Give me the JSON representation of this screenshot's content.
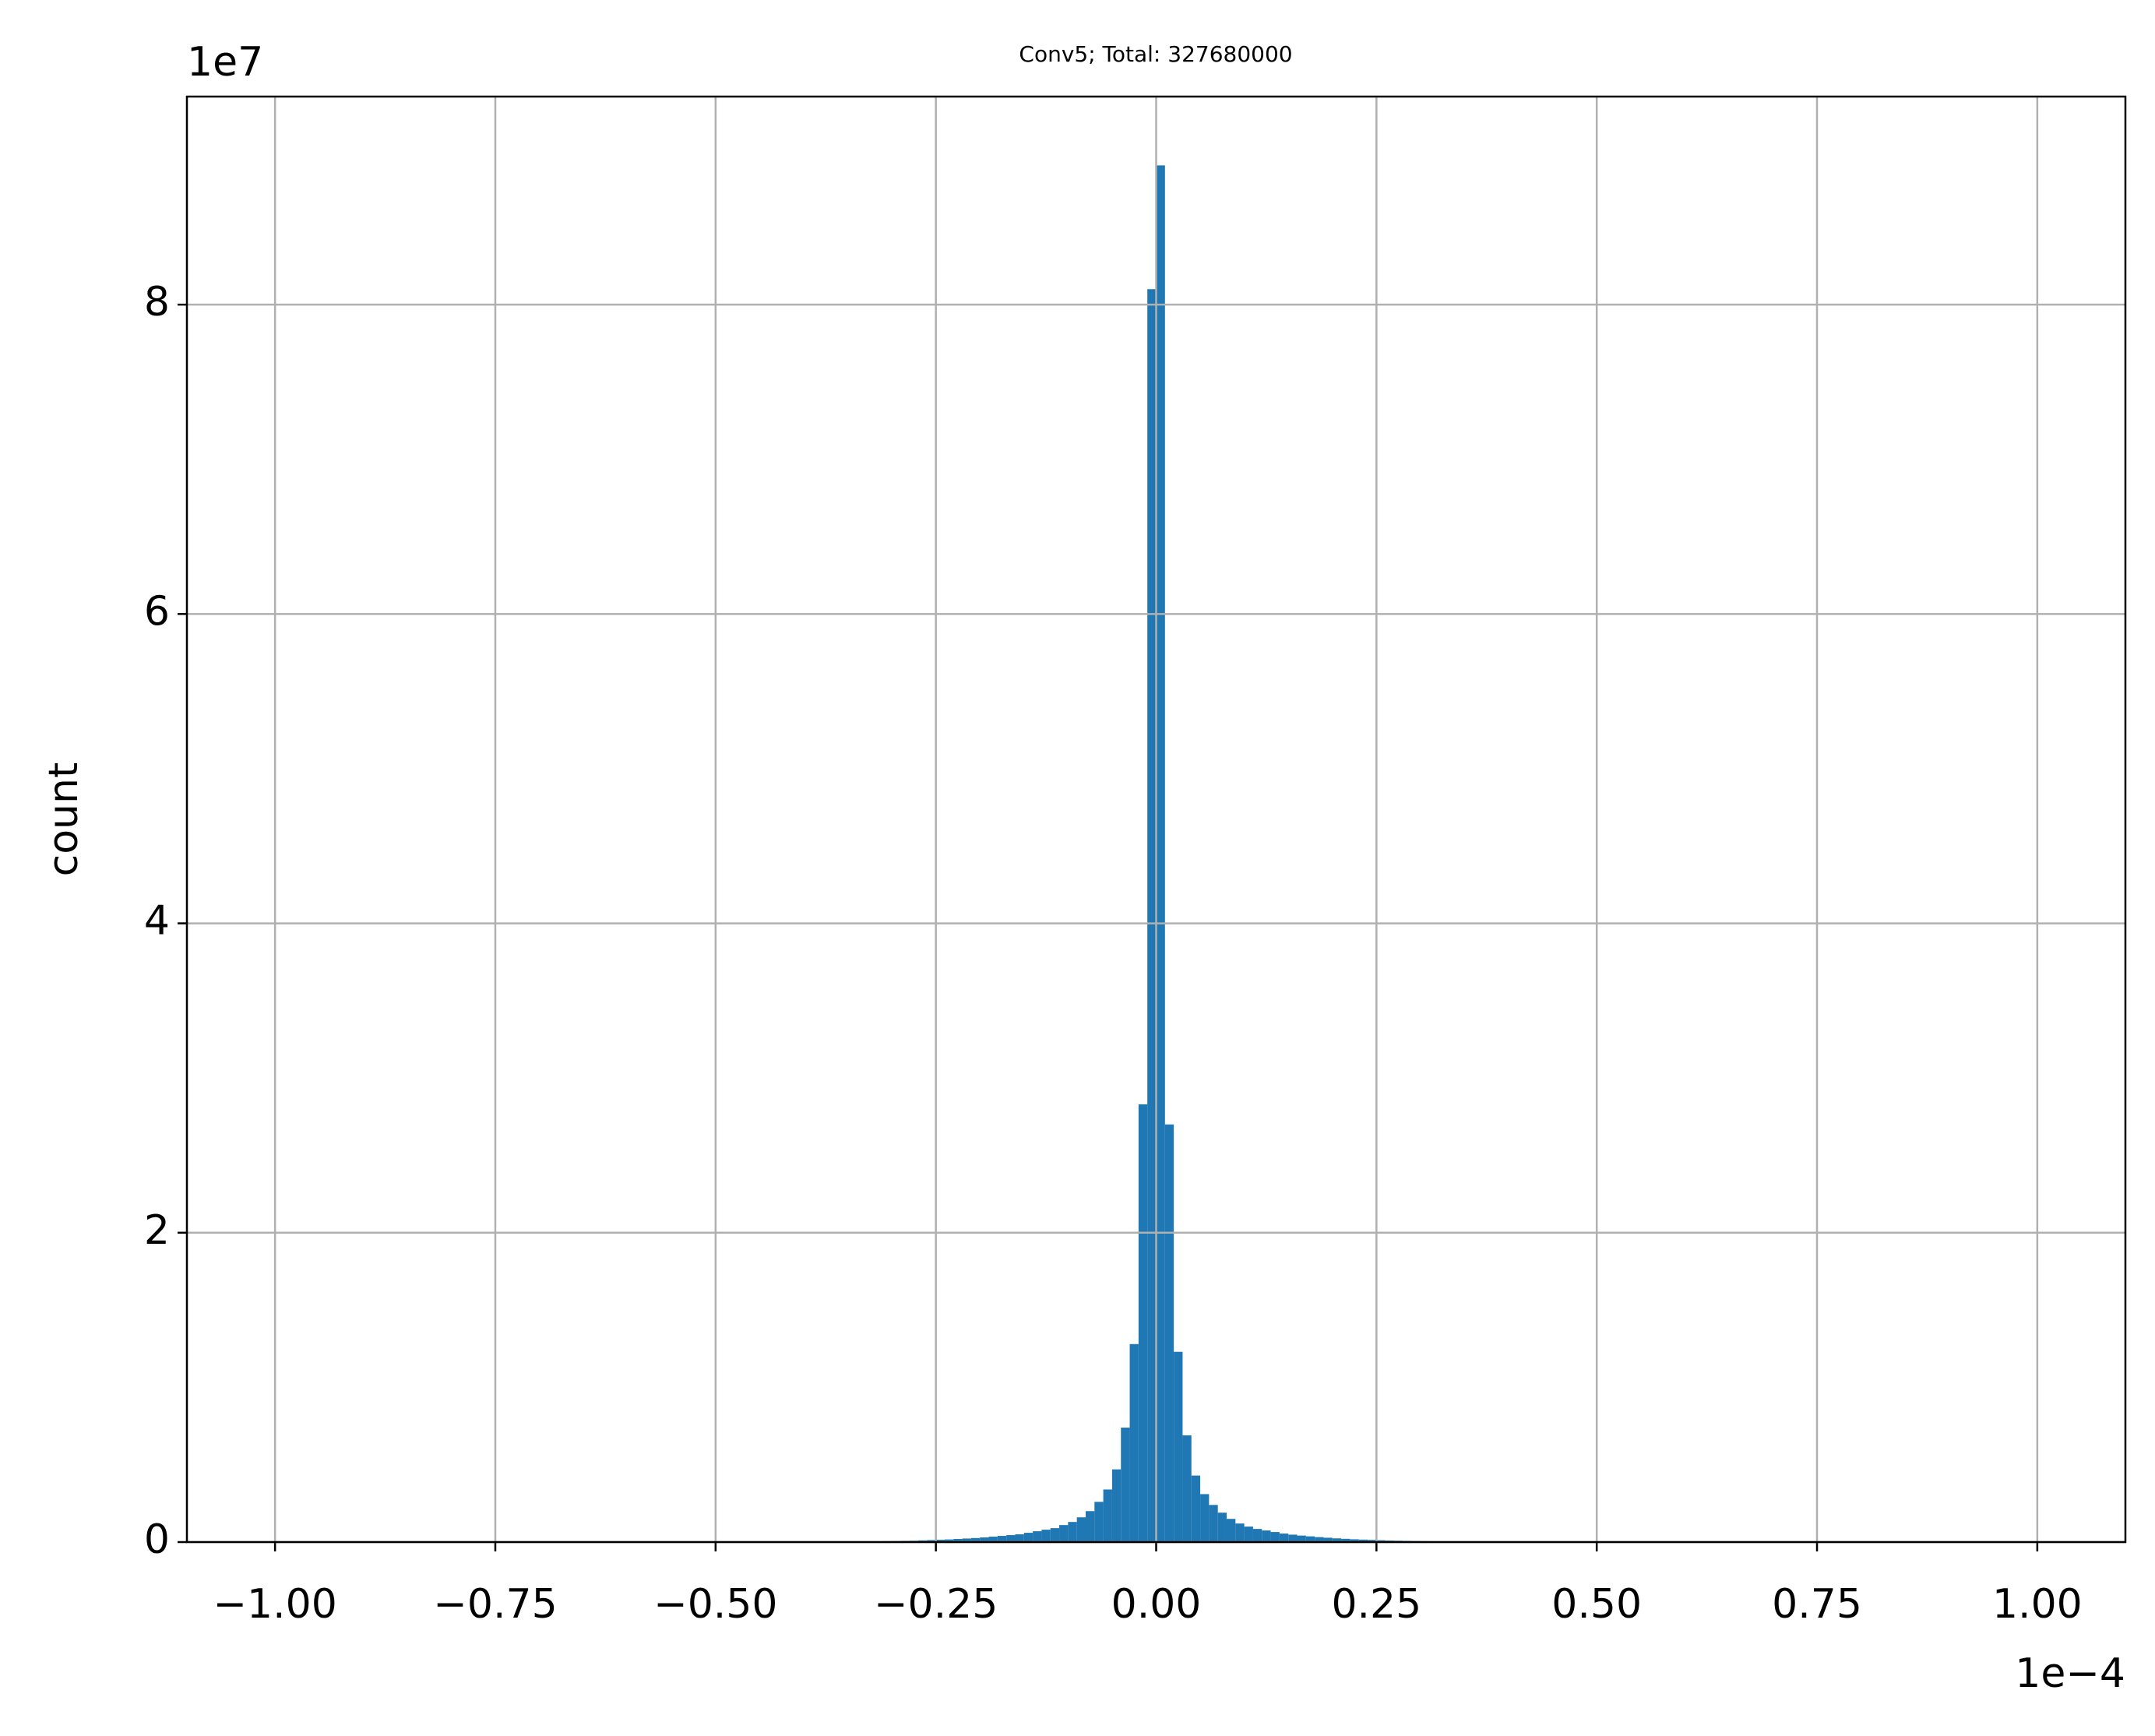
{
  "chart_data": {
    "type": "histogram",
    "title": "Conv5; Total: 327680000",
    "ylabel": "count",
    "x_offset_label": "1e−4",
    "y_offset_label": "1e7",
    "color": "#1f77b4",
    "grid": true,
    "bins": [
      -0.32,
      -0.31,
      -0.3,
      -0.29,
      -0.28,
      -0.27,
      -0.26,
      -0.25,
      -0.24,
      -0.23,
      -0.22,
      -0.21,
      -0.2,
      -0.19,
      -0.18,
      -0.17,
      -0.16,
      -0.15,
      -0.14,
      -0.13,
      -0.12,
      -0.11,
      -0.1,
      -0.09,
      -0.08,
      -0.07,
      -0.06,
      -0.05,
      -0.04,
      -0.03,
      -0.02,
      -0.01,
      0,
      0.01,
      0.02,
      0.03,
      0.04,
      0.05,
      0.06,
      0.07,
      0.08,
      0.09,
      0.1,
      0.11,
      0.12,
      0.13,
      0.14,
      0.15,
      0.16,
      0.17,
      0.18,
      0.19,
      0.2,
      0.21,
      0.22,
      0.23,
      0.24,
      0.25,
      0.26,
      0.27,
      0.28,
      0.29,
      0.3,
      0.31,
      0.32
    ],
    "values": [
      0.005,
      0.006,
      0.007,
      0.008,
      0.009,
      0.011,
      0.013,
      0.015,
      0.017,
      0.02,
      0.023,
      0.026,
      0.03,
      0.035,
      0.04,
      0.045,
      0.05,
      0.06,
      0.07,
      0.08,
      0.09,
      0.11,
      0.13,
      0.16,
      0.2,
      0.26,
      0.34,
      0.47,
      0.74,
      1.28,
      2.83,
      8.1,
      8.9,
      2.7,
      1.23,
      0.69,
      0.43,
      0.31,
      0.24,
      0.19,
      0.15,
      0.12,
      0.1,
      0.085,
      0.075,
      0.065,
      0.055,
      0.048,
      0.042,
      0.037,
      0.032,
      0.028,
      0.024,
      0.021,
      0.018,
      0.016,
      0.014,
      0.012,
      0.01,
      0.009,
      0.008,
      0.007,
      0.006,
      0.005
    ],
    "xlim": [
      -1.1,
      1.1
    ],
    "ylim": [
      0,
      9.345
    ],
    "xticks": [
      {
        "value": -1.0,
        "label": "−1.00"
      },
      {
        "value": -0.75,
        "label": "−0.75"
      },
      {
        "value": -0.5,
        "label": "−0.50"
      },
      {
        "value": -0.25,
        "label": "−0.25"
      },
      {
        "value": 0,
        "label": "0.00"
      },
      0.25,
      {
        "value": 0.5,
        "label": "0.50"
      },
      0.75,
      {
        "value": 1.0,
        "label": "1.00"
      }
    ],
    "yticks": [
      0,
      2,
      4,
      6,
      8
    ]
  }
}
